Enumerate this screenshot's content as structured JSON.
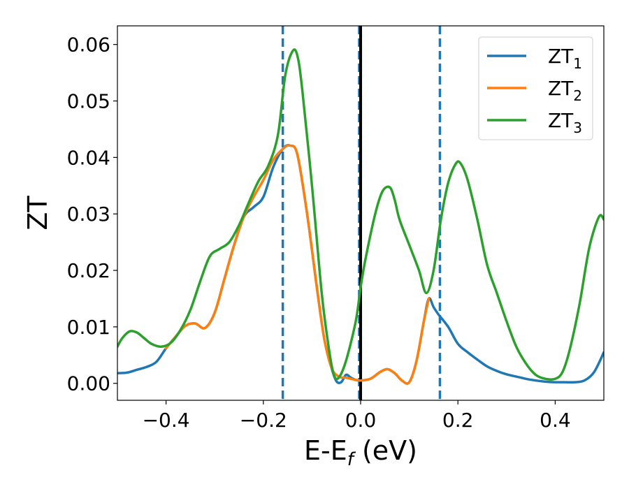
{
  "chart_data": {
    "type": "line",
    "title": "",
    "xlabel_main": "E-E",
    "xlabel_sub": "f",
    "xlabel_unit": " (eV)",
    "ylabel": "ZT",
    "xlim": [
      -0.5,
      0.5
    ],
    "ylim": [
      -0.003,
      0.0633
    ],
    "grid": false,
    "legend_position": "top-right",
    "x_ticks": [
      {
        "value": -0.4,
        "label": "−0.4"
      },
      {
        "value": -0.2,
        "label": "−0.2"
      },
      {
        "value": 0.0,
        "label": "0.0"
      },
      {
        "value": 0.2,
        "label": "0.2"
      },
      {
        "value": 0.4,
        "label": "0.4"
      }
    ],
    "y_ticks": [
      {
        "value": 0.0,
        "label": "0.00"
      },
      {
        "value": 0.01,
        "label": "0.01"
      },
      {
        "value": 0.02,
        "label": "0.02"
      },
      {
        "value": 0.03,
        "label": "0.03"
      },
      {
        "value": 0.04,
        "label": "0.04"
      },
      {
        "value": 0.05,
        "label": "0.05"
      },
      {
        "value": 0.06,
        "label": "0.06"
      }
    ],
    "reference_lines": [
      {
        "x": -0.16,
        "style": "dashed",
        "color": "#1f77b4"
      },
      {
        "x": 0.163,
        "style": "dashed",
        "color": "#1f77b4"
      },
      {
        "x": -0.003,
        "style": "dashed",
        "color": "#1f77b4"
      },
      {
        "x": 0.0,
        "style": "solid",
        "color": "#000000"
      }
    ],
    "series": [
      {
        "name_main": "ZT",
        "name_sub": "1",
        "color": "#1f77b4",
        "points": [
          [
            -0.5,
            0.0018
          ],
          [
            -0.48,
            0.0019
          ],
          [
            -0.46,
            0.0024
          ],
          [
            -0.44,
            0.0029
          ],
          [
            -0.42,
            0.0038
          ],
          [
            -0.4,
            0.0062
          ],
          [
            -0.38,
            0.0083
          ],
          [
            -0.36,
            0.0102
          ],
          [
            -0.34,
            0.0106
          ],
          [
            -0.32,
            0.0098
          ],
          [
            -0.3,
            0.0125
          ],
          [
            -0.28,
            0.0185
          ],
          [
            -0.26,
            0.0245
          ],
          [
            -0.24,
            0.0295
          ],
          [
            -0.22,
            0.0312
          ],
          [
            -0.2,
            0.033
          ],
          [
            -0.18,
            0.0382
          ],
          [
            -0.16,
            0.0415
          ],
          [
            -0.145,
            0.0421
          ],
          [
            -0.13,
            0.0405
          ],
          [
            -0.11,
            0.03
          ],
          [
            -0.09,
            0.017
          ],
          [
            -0.075,
            0.008
          ],
          [
            -0.06,
            0.0028
          ],
          [
            -0.05,
            0.0004
          ],
          [
            -0.04,
            0.0002
          ],
          [
            -0.03,
            0.0015
          ],
          [
            -0.02,
            0.001
          ],
          [
            -0.01,
            0.0006
          ],
          [
            0.0,
            0.0005
          ],
          [
            0.02,
            0.0008
          ],
          [
            0.04,
            0.002
          ],
          [
            0.055,
            0.0025
          ],
          [
            0.07,
            0.0018
          ],
          [
            0.085,
            0.0005
          ],
          [
            0.1,
            0.0002
          ],
          [
            0.115,
            0.004
          ],
          [
            0.13,
            0.011
          ],
          [
            0.14,
            0.015
          ],
          [
            0.15,
            0.0135
          ],
          [
            0.16,
            0.0122
          ],
          [
            0.18,
            0.01
          ],
          [
            0.2,
            0.007
          ],
          [
            0.22,
            0.0055
          ],
          [
            0.24,
            0.0042
          ],
          [
            0.26,
            0.003
          ],
          [
            0.28,
            0.0022
          ],
          [
            0.3,
            0.0016
          ],
          [
            0.32,
            0.0012
          ],
          [
            0.34,
            0.0008
          ],
          [
            0.36,
            0.0005
          ],
          [
            0.38,
            0.0003
          ],
          [
            0.4,
            0.0002
          ],
          [
            0.42,
            0.0002
          ],
          [
            0.44,
            0.0002
          ],
          [
            0.46,
            0.0005
          ],
          [
            0.48,
            0.002
          ],
          [
            0.5,
            0.0055
          ]
        ]
      },
      {
        "name_main": "ZT",
        "name_sub": "2",
        "color": "#ff7f0e",
        "points": [
          [
            -0.4,
            0.0062
          ],
          [
            -0.38,
            0.0083
          ],
          [
            -0.36,
            0.0102
          ],
          [
            -0.34,
            0.0106
          ],
          [
            -0.32,
            0.0098
          ],
          [
            -0.3,
            0.0125
          ],
          [
            -0.28,
            0.0185
          ],
          [
            -0.26,
            0.0245
          ],
          [
            -0.24,
            0.0295
          ],
          [
            -0.22,
            0.033
          ],
          [
            -0.2,
            0.036
          ],
          [
            -0.18,
            0.0395
          ],
          [
            -0.16,
            0.0415
          ],
          [
            -0.145,
            0.0421
          ],
          [
            -0.13,
            0.0405
          ],
          [
            -0.11,
            0.03
          ],
          [
            -0.09,
            0.017
          ],
          [
            -0.075,
            0.008
          ],
          [
            -0.06,
            0.0028
          ],
          [
            -0.045,
            0.0012
          ],
          [
            -0.03,
            0.001
          ],
          [
            -0.02,
            0.0008
          ],
          [
            -0.01,
            0.0006
          ],
          [
            0.0,
            0.0005
          ],
          [
            0.02,
            0.0008
          ],
          [
            0.04,
            0.002
          ],
          [
            0.055,
            0.0025
          ],
          [
            0.07,
            0.0018
          ],
          [
            0.085,
            0.0005
          ],
          [
            0.1,
            0.0002
          ],
          [
            0.115,
            0.004
          ],
          [
            0.13,
            0.011
          ],
          [
            0.14,
            0.015
          ]
        ]
      },
      {
        "name_main": "ZT",
        "name_sub": "3",
        "color": "#2ca02c",
        "points": [
          [
            -0.5,
            0.0065
          ],
          [
            -0.49,
            0.008
          ],
          [
            -0.475,
            0.0092
          ],
          [
            -0.46,
            0.009
          ],
          [
            -0.445,
            0.008
          ],
          [
            -0.43,
            0.007
          ],
          [
            -0.41,
            0.0065
          ],
          [
            -0.39,
            0.0072
          ],
          [
            -0.37,
            0.0095
          ],
          [
            -0.35,
            0.013
          ],
          [
            -0.33,
            0.018
          ],
          [
            -0.31,
            0.0225
          ],
          [
            -0.29,
            0.0238
          ],
          [
            -0.27,
            0.025
          ],
          [
            -0.25,
            0.028
          ],
          [
            -0.23,
            0.032
          ],
          [
            -0.21,
            0.0358
          ],
          [
            -0.19,
            0.0385
          ],
          [
            -0.17,
            0.044
          ],
          [
            -0.155,
            0.0545
          ],
          [
            -0.14,
            0.0588
          ],
          [
            -0.13,
            0.058
          ],
          [
            -0.12,
            0.052
          ],
          [
            -0.1,
            0.035
          ],
          [
            -0.08,
            0.016
          ],
          [
            -0.065,
            0.006
          ],
          [
            -0.055,
            0.0015
          ],
          [
            -0.045,
            0.001
          ],
          [
            -0.03,
            0.004
          ],
          [
            -0.01,
            0.011
          ],
          [
            0.0,
            0.017
          ],
          [
            0.01,
            0.022
          ],
          [
            0.03,
            0.03
          ],
          [
            0.045,
            0.034
          ],
          [
            0.06,
            0.0347
          ],
          [
            0.07,
            0.0325
          ],
          [
            0.08,
            0.029
          ],
          [
            0.1,
            0.0245
          ],
          [
            0.12,
            0.02
          ],
          [
            0.135,
            0.016
          ],
          [
            0.15,
            0.02
          ],
          [
            0.165,
            0.029
          ],
          [
            0.18,
            0.0355
          ],
          [
            0.195,
            0.0388
          ],
          [
            0.205,
            0.039
          ],
          [
            0.22,
            0.036
          ],
          [
            0.24,
            0.029
          ],
          [
            0.26,
            0.021
          ],
          [
            0.28,
            0.016
          ],
          [
            0.3,
            0.011
          ],
          [
            0.32,
            0.0065
          ],
          [
            0.34,
            0.0035
          ],
          [
            0.36,
            0.0015
          ],
          [
            0.38,
            0.0008
          ],
          [
            0.4,
            0.0008
          ],
          [
            0.415,
            0.002
          ],
          [
            0.43,
            0.006
          ],
          [
            0.45,
            0.014
          ],
          [
            0.47,
            0.024
          ],
          [
            0.49,
            0.0295
          ],
          [
            0.5,
            0.029
          ]
        ]
      }
    ]
  }
}
